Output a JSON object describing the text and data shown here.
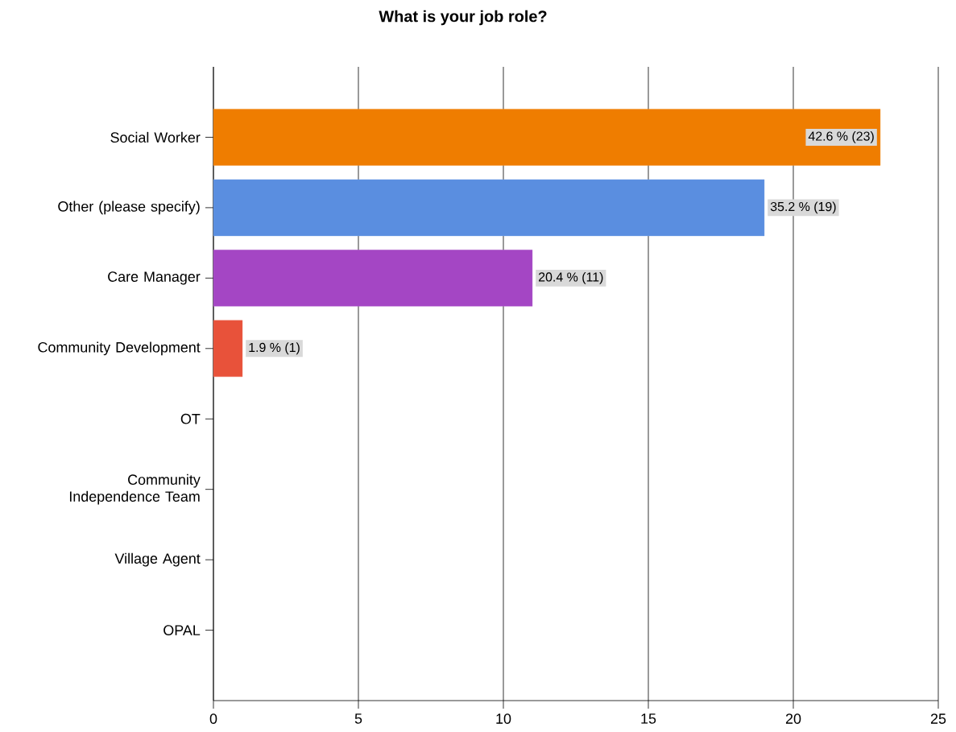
{
  "chart_data": {
    "type": "bar",
    "orientation": "horizontal",
    "title": "What is your job role?",
    "categories": [
      "Social Worker",
      "Other (please specify)",
      "Care Manager",
      "Community Development",
      "OT",
      "Community Independence Team",
      "Village Agent",
      "OPAL"
    ],
    "values": [
      23,
      19,
      11,
      1,
      0,
      0,
      0,
      0
    ],
    "colors": [
      "#ef7d00",
      "#5a8ee0",
      "#a446c4",
      "#e8523a",
      null,
      null,
      null,
      null
    ],
    "value_labels": [
      "42.6 % (23)",
      "35.2 % (19)",
      "20.4 % (11)",
      "1.9 % (1)",
      null,
      null,
      null,
      null
    ],
    "xlim": [
      0,
      25
    ],
    "xticks": [
      0,
      5,
      10,
      15,
      20,
      25
    ],
    "grid": "x"
  }
}
